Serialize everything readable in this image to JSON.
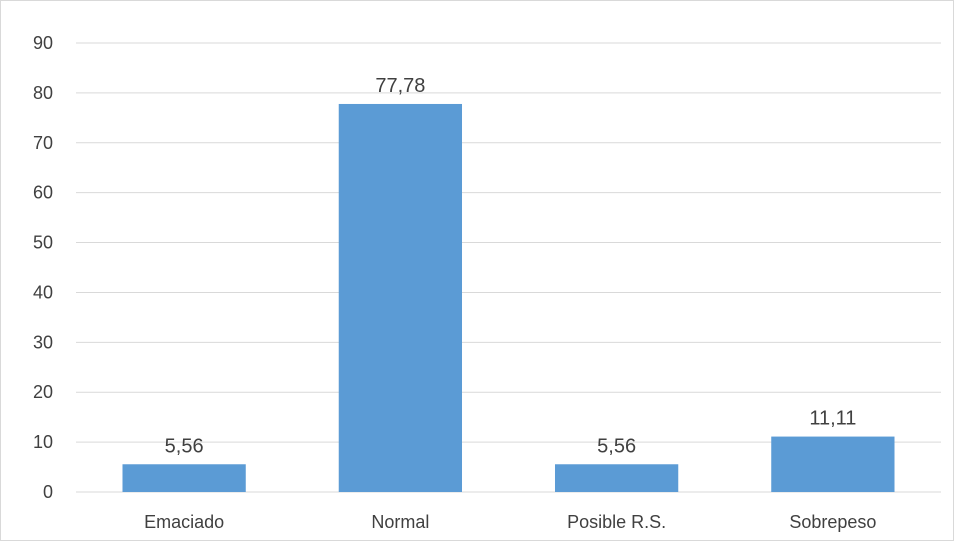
{
  "chart_data": {
    "type": "bar",
    "title": "",
    "xlabel": "",
    "ylabel": "",
    "categories": [
      "Emaciado",
      "Normal",
      "Posible R.S.",
      "Sobrepeso"
    ],
    "values": [
      5.56,
      77.78,
      5.56,
      11.11
    ],
    "data_labels": [
      "5,56",
      "77,78",
      "5,56",
      "11,11"
    ],
    "ylim": [
      0,
      90
    ],
    "yticks": [
      0,
      10,
      20,
      30,
      40,
      50,
      60,
      70,
      80,
      90
    ],
    "grid": true,
    "legend": "none",
    "colors": {
      "bar": "#5b9bd5",
      "grid": "#d9d9d9",
      "text": "#404040"
    }
  }
}
